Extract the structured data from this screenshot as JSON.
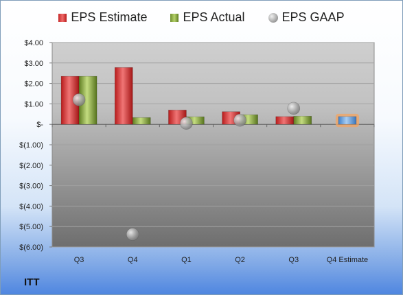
{
  "company": "ITT",
  "legend": {
    "estimate": "EPS Estimate",
    "actual": "EPS Actual",
    "gaap": "EPS GAAP"
  },
  "chart_data": {
    "type": "bar",
    "categories": [
      "Q3",
      "Q4",
      "Q1",
      "Q2",
      "Q3",
      "Q4 Estimate"
    ],
    "series": [
      {
        "name": "EPS Estimate",
        "values": [
          2.35,
          2.78,
          0.7,
          0.62,
          0.38,
          null
        ]
      },
      {
        "name": "EPS Actual",
        "values": [
          2.35,
          0.33,
          0.37,
          0.47,
          0.4,
          0.38
        ]
      },
      {
        "name": "EPS GAAP",
        "values": [
          1.2,
          -5.38,
          0.05,
          0.2,
          0.78,
          null
        ]
      }
    ],
    "ylim": [
      -6,
      4
    ],
    "yticks": [
      4,
      3,
      2,
      1,
      0,
      -1,
      -2,
      -3,
      -4,
      -5,
      -6
    ],
    "ytick_labels": [
      "$4.00",
      "$3.00",
      "$2.00",
      "$1.00",
      "$-",
      "$(1.00)",
      "$(2.00)",
      "$(3.00)",
      "$(4.00)",
      "$(5.00)",
      "$(6.00)"
    ],
    "grid": true,
    "legend_position": "top",
    "colors": {
      "estimate": "#d32f2f",
      "actual": "#8fb340",
      "gaap": "#a8a8a8",
      "forecast": "#5b9bd5",
      "forecast_glow": "#f4a460"
    }
  }
}
